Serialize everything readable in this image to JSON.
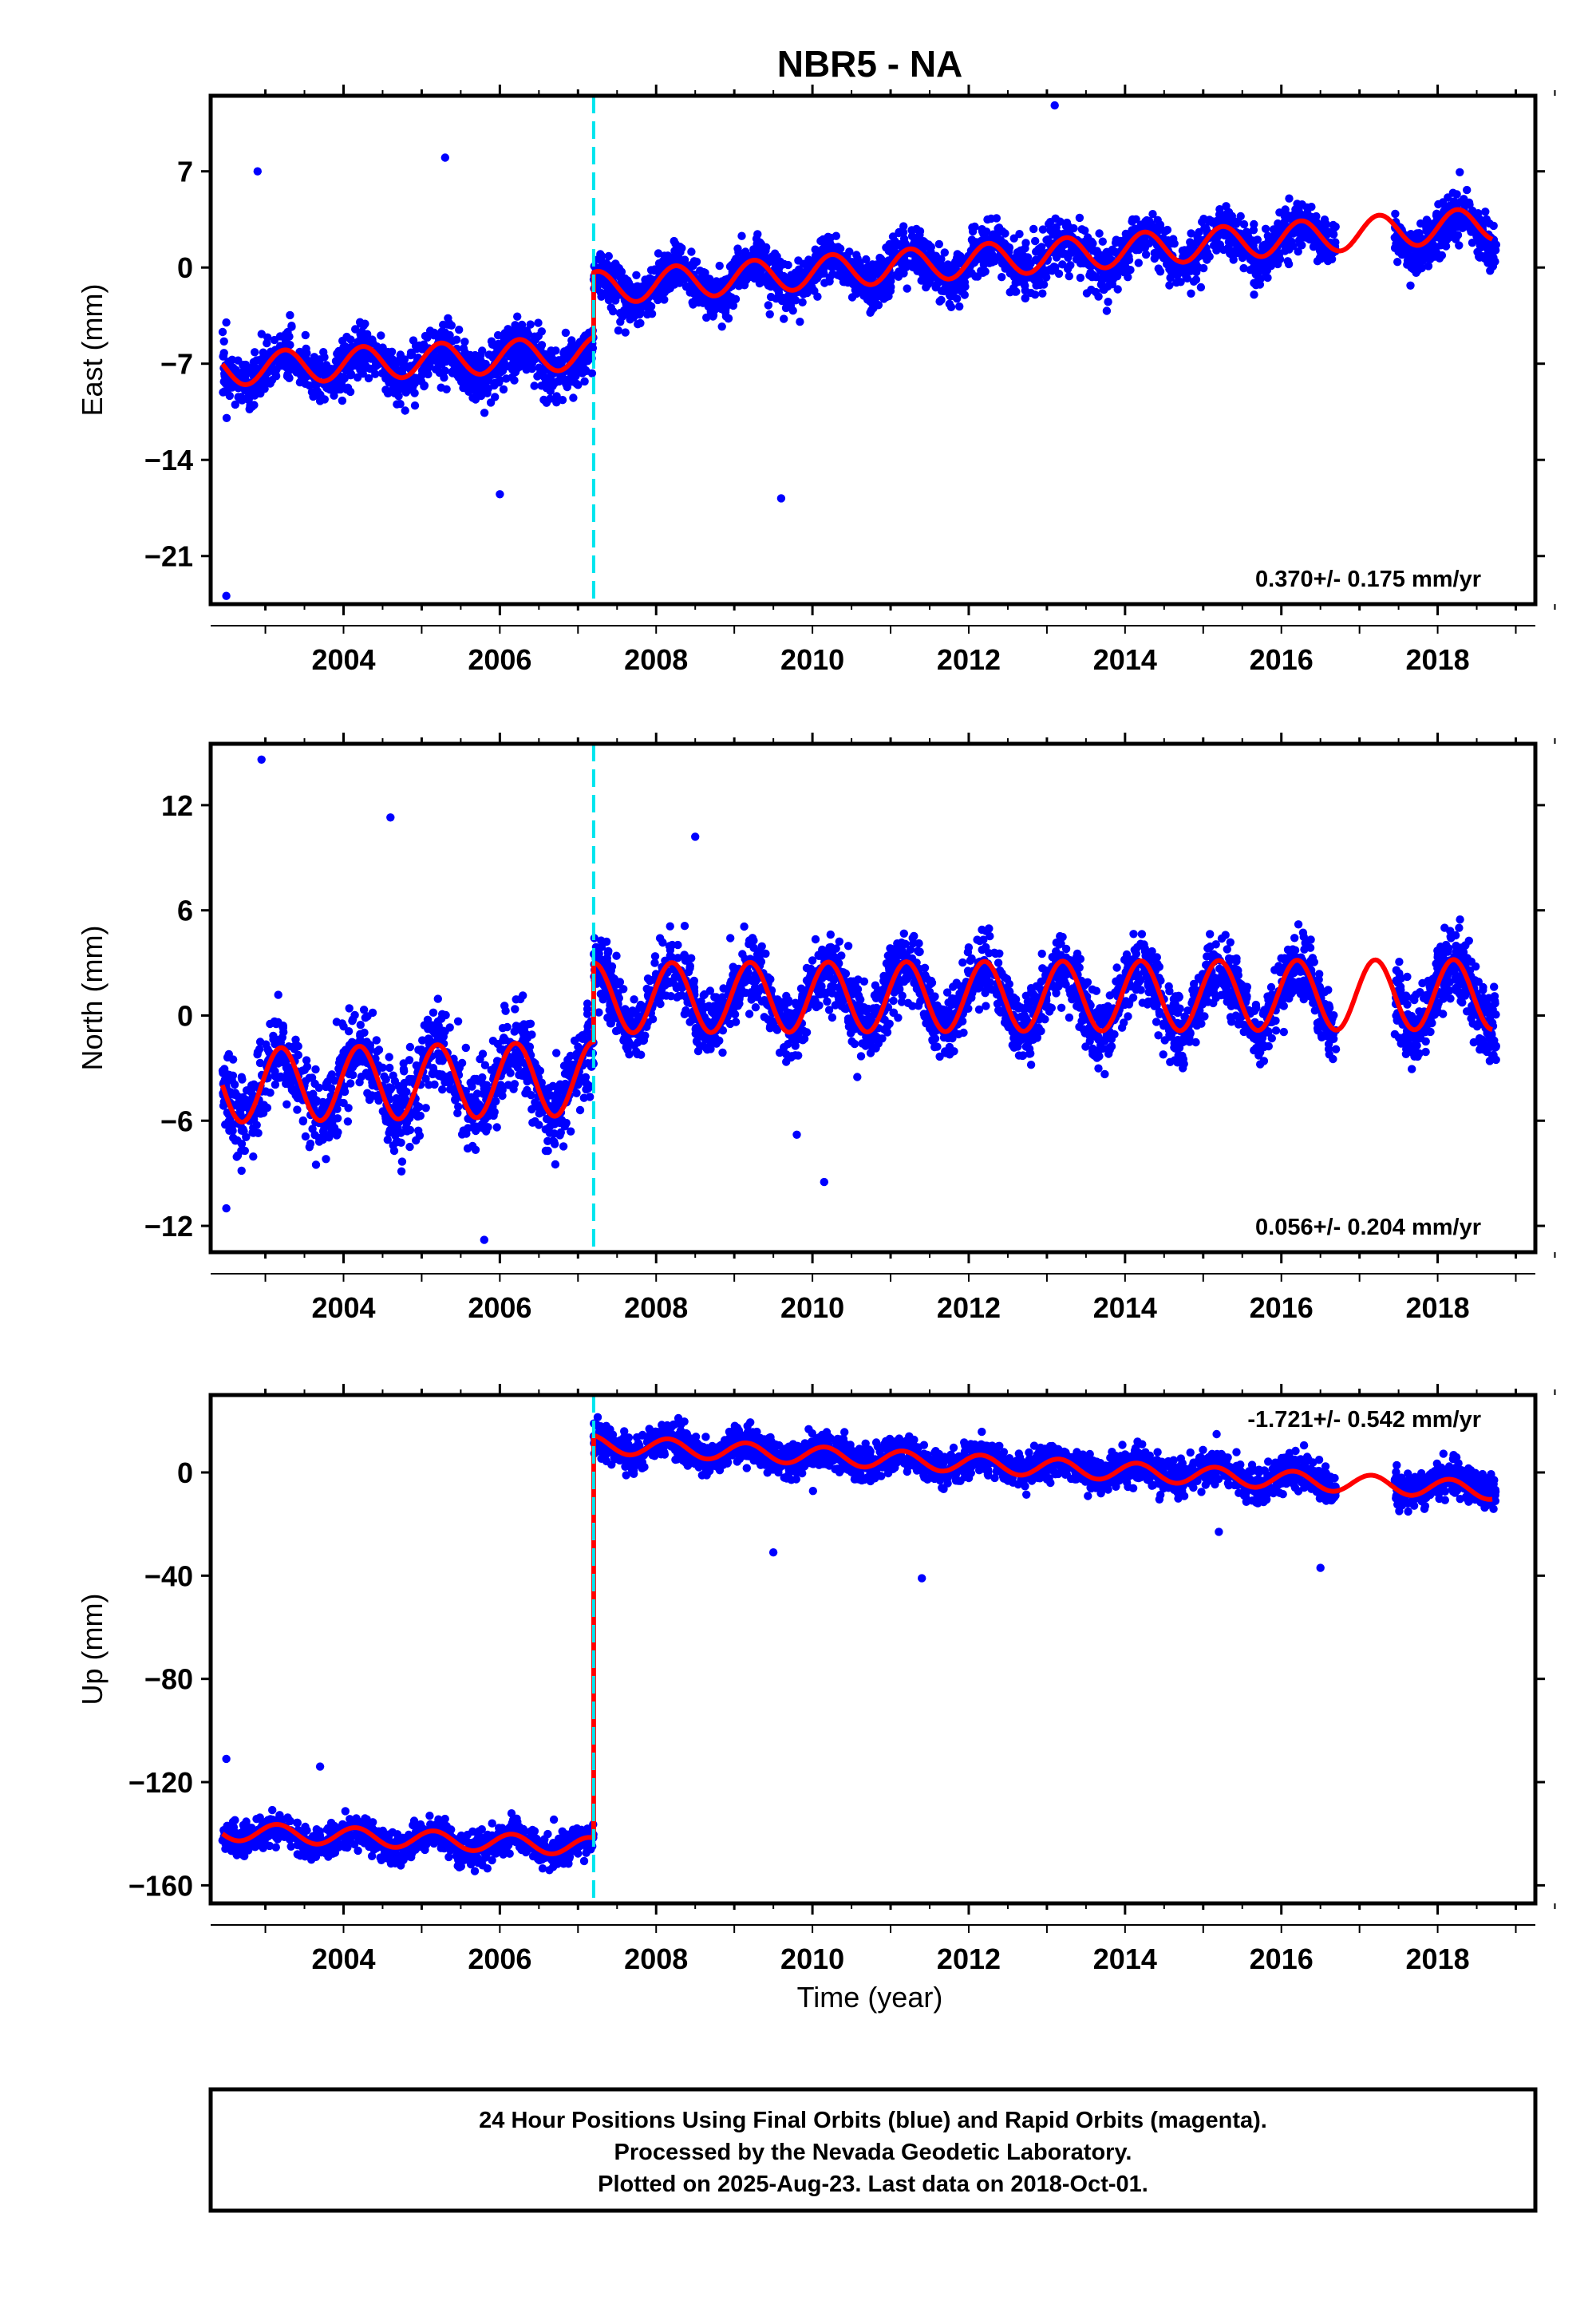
{
  "title": "NBR5 - NA",
  "xlabel": "Time (year)",
  "footer": {
    "line1": "24 Hour Positions Using Final Orbits (blue) and Rapid Orbits (magenta).",
    "line2": "Processed by the Nevada Geodetic Laboratory.",
    "line3": "Plotted on 2025-Aug-23. Last data on 2018-Oct-01."
  },
  "colors": {
    "points": "#0000ff",
    "model": "#ff0000",
    "offset_line": "#00e5ee",
    "frame": "#000000"
  },
  "chart_data": [
    {
      "type": "scatter",
      "panel": "east",
      "ylabel": "East (mm)",
      "xlim": [
        2002.3,
        2019.25
      ],
      "ylim": [
        -24.5,
        12.5
      ],
      "yticks": [
        7,
        0,
        -7,
        -14,
        -21
      ],
      "yticks_labels": [
        "7",
        "0",
        "-7",
        "-14",
        "-21"
      ],
      "xticks": [
        2004,
        2006,
        2008,
        2010,
        2012,
        2014,
        2016,
        2018
      ],
      "rate_text": "0.370+/- 0.175 mm/yr",
      "offset_epoch": 2007.2,
      "data_gap": [
        2016.7,
        2017.45
      ],
      "model_segments": [
        {
          "x0": 2002.45,
          "x1": 2007.2,
          "y0": -7.4,
          "y1": -6.2,
          "amp": 1.2,
          "phase": 0.0
        },
        {
          "x0": 2007.2,
          "x1": 2018.7,
          "y0": -1.5,
          "y1": 3.2,
          "amp": 1.2,
          "phase": 0.0
        }
      ],
      "series": [
        {
          "x0": 2002.45,
          "x1": 2007.2,
          "y0": -7.6,
          "y1": -6.6,
          "amp": 1.0,
          "noise": 1.6,
          "n": 1100
        },
        {
          "x0": 2007.2,
          "x1": 2016.7,
          "y0": -1.6,
          "y1": 2.2,
          "amp": 1.2,
          "noise": 1.5,
          "n": 2300
        },
        {
          "x0": 2017.45,
          "x1": 2018.75,
          "y0": 2.2,
          "y1": 2.8,
          "amp": 1.2,
          "noise": 1.4,
          "n": 380
        }
      ],
      "outliers": [
        [
          2002.5,
          -23.9
        ],
        [
          2002.5,
          -4
        ],
        [
          2006.0,
          -16.5
        ],
        [
          2009.6,
          -16.8
        ],
        [
          2013.1,
          11.8
        ],
        [
          2005.3,
          8
        ],
        [
          2002.9,
          7
        ]
      ]
    },
    {
      "type": "scatter",
      "panel": "north",
      "ylabel": "North (mm)",
      "xlim": [
        2002.3,
        2019.25
      ],
      "ylim": [
        -13.5,
        15.5
      ],
      "yticks": [
        12,
        6,
        0,
        -6,
        -12
      ],
      "yticks_labels": [
        "12",
        "6",
        "0",
        "-6",
        "-12"
      ],
      "xticks": [
        2004,
        2006,
        2008,
        2010,
        2012,
        2014,
        2016,
        2018
      ],
      "rate_text": "0.056+/- 0.204 mm/yr",
      "offset_epoch": 2007.2,
      "data_gap": [
        2016.7,
        2017.45
      ],
      "model_segments": [
        {
          "x0": 2002.45,
          "x1": 2007.2,
          "y0": -4.0,
          "y1": -3.6,
          "amp": 2.1,
          "phase": 0.3
        },
        {
          "x0": 2007.2,
          "x1": 2018.7,
          "y0": 1.0,
          "y1": 1.2,
          "amp": 2.0,
          "phase": 0.3
        }
      ],
      "series": [
        {
          "x0": 2002.45,
          "x1": 2007.2,
          "y0": -4.0,
          "y1": -3.6,
          "amp": 1.8,
          "noise": 2.0,
          "n": 1100
        },
        {
          "x0": 2007.2,
          "x1": 2016.7,
          "y0": 1.0,
          "y1": 1.0,
          "amp": 1.8,
          "noise": 1.6,
          "n": 2300
        },
        {
          "x0": 2017.45,
          "x1": 2018.75,
          "y0": 1.1,
          "y1": 1.2,
          "amp": 1.8,
          "noise": 1.6,
          "n": 380
        }
      ],
      "outliers": [
        [
          2002.95,
          14.6
        ],
        [
          2004.6,
          11.3
        ],
        [
          2008.5,
          10.2
        ],
        [
          2010.15,
          -9.5
        ],
        [
          2005.8,
          -12.8
        ],
        [
          2002.5,
          -11
        ],
        [
          2009.8,
          -6.8
        ]
      ]
    },
    {
      "type": "scatter",
      "panel": "up",
      "ylabel": "Up (mm)",
      "xlim": [
        2002.3,
        2019.25
      ],
      "ylim": [
        -167,
        30
      ],
      "yticks": [
        0,
        -40,
        -80,
        -120,
        -160
      ],
      "yticks_labels": [
        "0",
        "-40",
        "-80",
        "-120",
        "-160"
      ],
      "xticks": [
        2004,
        2006,
        2008,
        2010,
        2012,
        2014,
        2016,
        2018
      ],
      "rate_text": "-1.721+/- 0.542 mm/yr",
      "offset_epoch": 2007.2,
      "data_gap": [
        2016.7,
        2017.45
      ],
      "model_segments": [
        {
          "x0": 2002.45,
          "x1": 2007.2,
          "y0": -139,
          "y1": -145,
          "amp": 3.5,
          "phase": 0.6
        },
        {
          "x0": 2007.2,
          "x1": 2018.7,
          "y0": 11,
          "y1": -7,
          "amp": 3.5,
          "phase": 0.6
        }
      ],
      "series": [
        {
          "x0": 2002.45,
          "x1": 2007.2,
          "y0": -140,
          "y1": -145,
          "amp": 3.0,
          "noise": 5.0,
          "n": 1100
        },
        {
          "x0": 2007.2,
          "x1": 2016.7,
          "y0": 11,
          "y1": -3,
          "amp": 3.0,
          "noise": 5.5,
          "n": 2300
        },
        {
          "x0": 2017.45,
          "x1": 2018.75,
          "y0": -4,
          "y1": -6,
          "amp": 3.0,
          "noise": 5.0,
          "n": 380
        }
      ],
      "outliers": [
        [
          2002.5,
          -111
        ],
        [
          2003.7,
          -114
        ],
        [
          2009.5,
          -31
        ],
        [
          2011.4,
          -41
        ],
        [
          2016.5,
          -37
        ],
        [
          2015.2,
          -23
        ]
      ]
    }
  ]
}
